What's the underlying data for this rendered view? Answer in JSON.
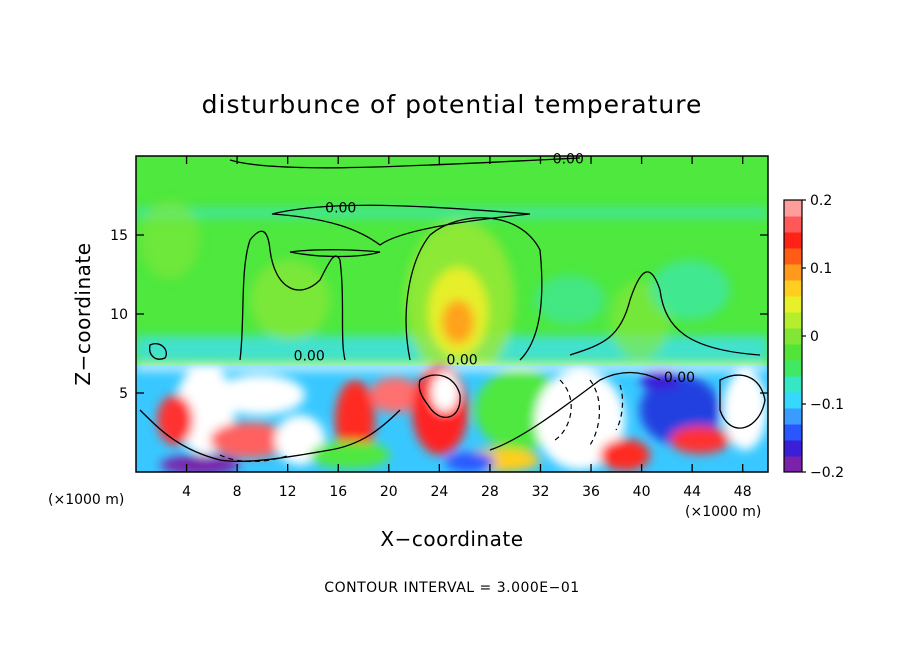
{
  "chart_data": {
    "type": "heatmap",
    "title": "disturbunce of potential temperature",
    "xlabel": "X−coordinate",
    "ylabel": "Z−coordinate",
    "x_unit": "(×1000 m)",
    "y_unit": "(×1000 m)",
    "xlim": [
      0,
      50
    ],
    "ylim": [
      0,
      20
    ],
    "x_ticks": [
      4,
      8,
      12,
      16,
      20,
      24,
      28,
      32,
      36,
      40,
      44,
      48
    ],
    "y_ticks": [
      5,
      10,
      15
    ],
    "colorbar": {
      "min": -0.2,
      "max": 0.2,
      "ticks": [
        {
          "value": 0.2,
          "label": "0.2"
        },
        {
          "value": 0.1,
          "label": "0.1"
        },
        {
          "value": 0,
          "label": "0"
        },
        {
          "value": -0.1,
          "label": "−0.1"
        },
        {
          "value": -0.2,
          "label": "−0.2"
        }
      ],
      "colors": [
        "#7a22aa",
        "#3a1ed8",
        "#2a56ff",
        "#3a9cff",
        "#37d8ff",
        "#35e7c4",
        "#40e864",
        "#53e43a",
        "#82e634",
        "#b4ee2c",
        "#e8f02a",
        "#ffce1e",
        "#ff9a1c",
        "#ff5d17",
        "#ff2317",
        "#ff5858",
        "#ff9c9c"
      ]
    },
    "contour_labels": [
      {
        "x": 34.2,
        "z": 19.7,
        "text": "0.00"
      },
      {
        "x": 16.2,
        "z": 16.6,
        "text": "0.00"
      },
      {
        "x": 13.7,
        "z": 7.25,
        "text": "0.00"
      },
      {
        "x": 25.8,
        "z": 7.0,
        "text": "0.00"
      },
      {
        "x": 43.0,
        "z": 5.9,
        "text": "0.00"
      }
    ],
    "footer": "CONTOUR INTERVAL = 3.000E−01"
  }
}
